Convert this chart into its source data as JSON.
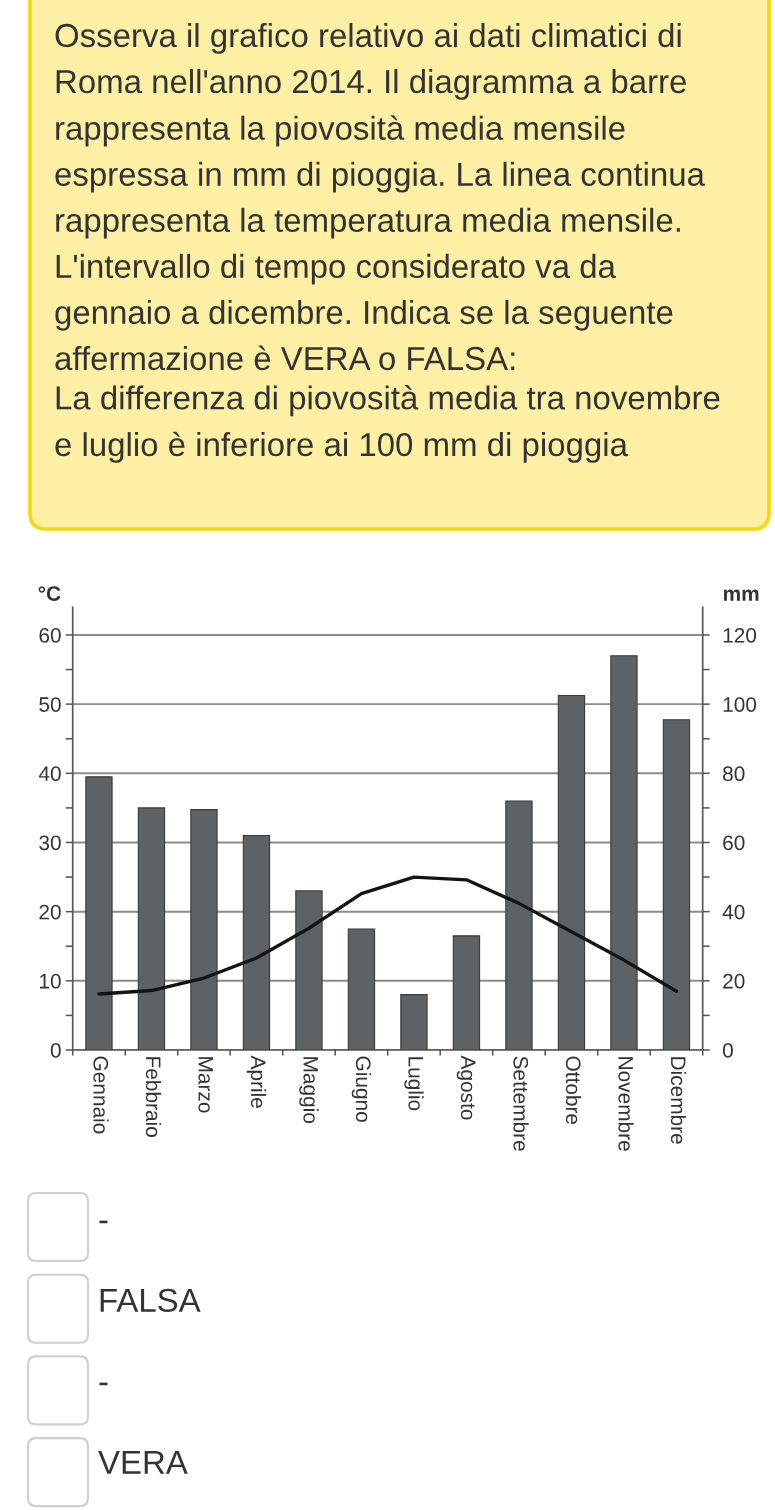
{
  "chart_data": {
    "type": "bar",
    "title": "Osserva il grafico relativo ai dati climatici di Roma nell'anno 2014. Il diagramma a barre rappresenta la piovosità media mensile espressa in mm di pioggia. La linea continua rappresenta la temperatura media mensile. L'intervallo di tempo considerato va da gennaio a dicembre. Indica se la seguente affermazione è VERA o FALSA:",
    "subtitle": "La differenza di piovosità media tra novembre e luglio è inferiore ai 100 mm di pioggia",
    "ylabel": "°C",
    "y2label": "mm",
    "categories": [
      "Gennaio",
      "Febbraio",
      "Marzo",
      "Aprile",
      "Maggio",
      "Giugno",
      "Luglio",
      "Agosto",
      "Settembre",
      "Ottobre",
      "Novembre",
      "Dicembre"
    ],
    "series": [
      {
        "axis": "y2",
        "color": "#5f6264",
        "values": [
          79,
          70,
          69.5,
          62,
          46,
          35,
          16,
          33,
          72,
          102.5,
          114,
          95.5
        ]
      },
      {
        "type": "line",
        "color": "#141414",
        "values": [
          8.1,
          8.6,
          10.4,
          13.3,
          17.6,
          22.6,
          25,
          24.6,
          21.2,
          17.1,
          13,
          8.5
        ]
      }
    ],
    "ylim": [
      0,
      64
    ],
    "yticks": [
      0,
      {
        "value": 5,
        "label": null
      },
      10,
      {
        "value": 15,
        "label": null
      },
      20,
      {
        "value": 25,
        "label": null
      },
      30,
      {
        "value": 35,
        "label": null
      },
      40,
      {
        "value": 45,
        "label": null
      },
      50,
      {
        "value": 55,
        "label": null
      },
      60
    ],
    "y2lim": [
      0,
      128
    ],
    "y2ticks": [
      0,
      {
        "value": 10,
        "label": null
      },
      20,
      {
        "value": 30,
        "label": null
      },
      40,
      {
        "value": 50,
        "label": null
      },
      60,
      {
        "value": 70,
        "label": null
      },
      80,
      {
        "value": 90,
        "label": null
      },
      100,
      {
        "value": 110,
        "label": null
      },
      120
    ],
    "grid": "y",
    "annotations": [
      "-",
      "FALSA",
      "-",
      "VERA"
    ]
  }
}
